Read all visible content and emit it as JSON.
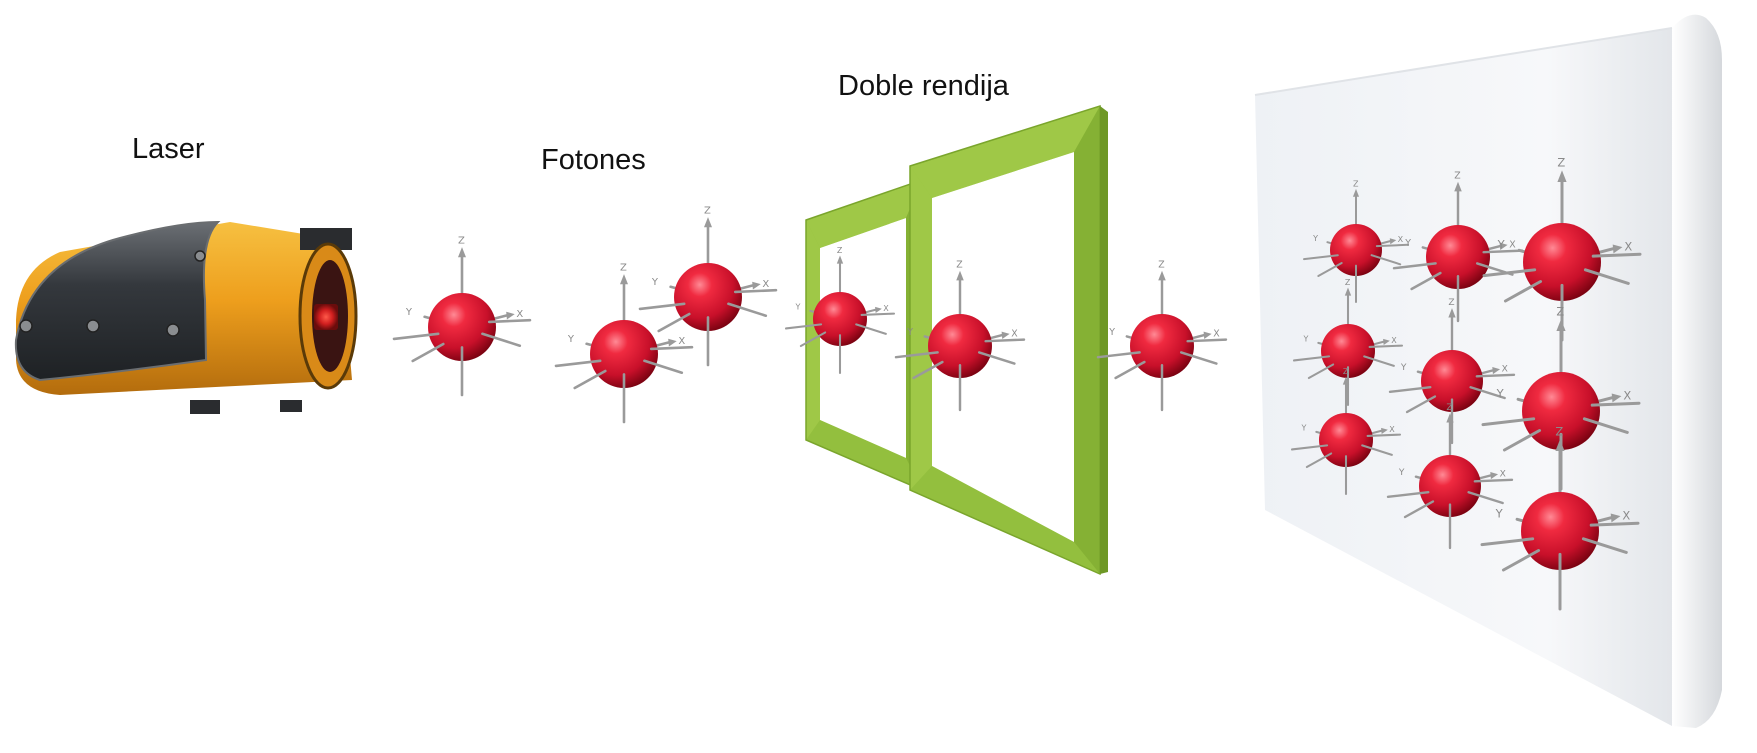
{
  "labels": {
    "laser": "Laser",
    "photons": "Fotones",
    "double_slit": "Doble rendija"
  },
  "axis_letters": {
    "z": "Z",
    "y": "Y",
    "x": "X"
  },
  "colors": {
    "sphere": "#d7142a",
    "sphere_highlight": "#ff6b78",
    "sphere_shadow": "#8f0514",
    "slit_frame": "#93bf3e",
    "slit_frame_light": "#a9d04e",
    "slit_frame_dark": "#7aa52c",
    "laser_body": "#f0a82a",
    "laser_cap": "#2f3236",
    "screen": "#f2f4f7",
    "axis": "#9a9a9a",
    "text": "#111111"
  },
  "icons": {
    "laser": "laser-device-icon",
    "photon": "photon-sphere-icon",
    "slit": "double-slit-frame-icon",
    "screen": "detector-screen-icon"
  }
}
